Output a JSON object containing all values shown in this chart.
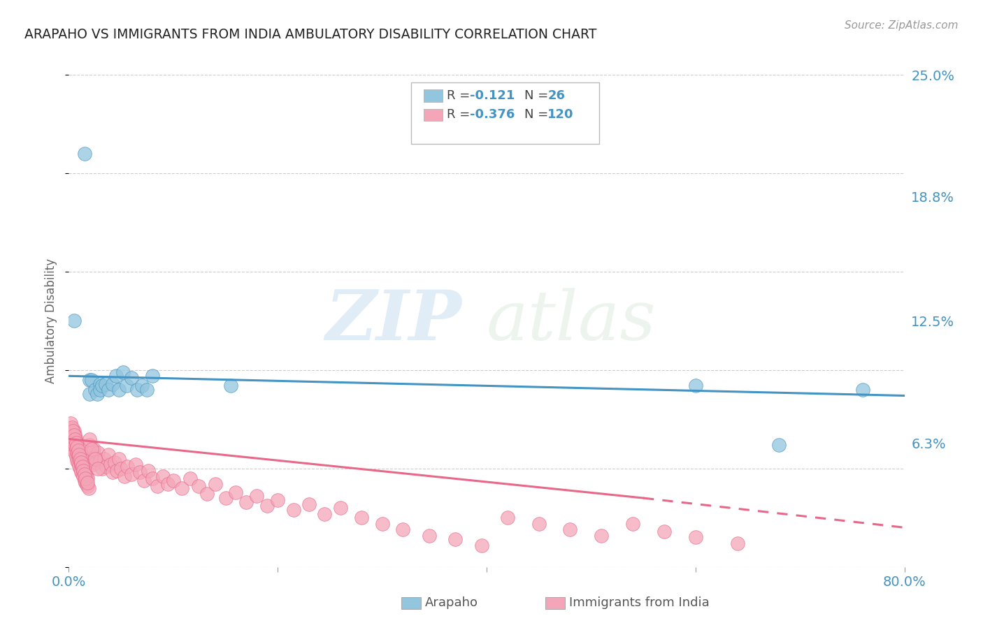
{
  "title": "ARAPAHO VS IMMIGRANTS FROM INDIA AMBULATORY DISABILITY CORRELATION CHART",
  "source": "Source: ZipAtlas.com",
  "ylabel": "Ambulatory Disability",
  "xlim": [
    0.0,
    0.8
  ],
  "ylim": [
    0.0,
    0.25
  ],
  "yticks": [
    0.063,
    0.125,
    0.188,
    0.25
  ],
  "ytick_labels": [
    "6.3%",
    "12.5%",
    "18.8%",
    "25.0%"
  ],
  "xticks": [
    0.0,
    0.2,
    0.4,
    0.6,
    0.8
  ],
  "xtick_labels": [
    "0.0%",
    "",
    "",
    "",
    "80.0%"
  ],
  "watermark_zip": "ZIP",
  "watermark_atlas": "atlas",
  "blue_color": "#92c5de",
  "pink_color": "#f4a6b8",
  "blue_line_color": "#4393c3",
  "pink_line_color": "#e8688a",
  "blue_marker_edge": "#4393c3",
  "pink_marker_edge": "#e8688a",
  "arapaho_x": [
    0.005,
    0.015,
    0.02,
    0.02,
    0.022,
    0.025,
    0.027,
    0.03,
    0.03,
    0.032,
    0.035,
    0.038,
    0.042,
    0.045,
    0.048,
    0.052,
    0.055,
    0.06,
    0.065,
    0.07,
    0.075,
    0.08,
    0.155,
    0.6,
    0.68,
    0.76
  ],
  "arapaho_y": [
    0.125,
    0.21,
    0.095,
    0.088,
    0.095,
    0.09,
    0.088,
    0.093,
    0.09,
    0.092,
    0.093,
    0.09,
    0.093,
    0.097,
    0.09,
    0.099,
    0.092,
    0.096,
    0.09,
    0.092,
    0.09,
    0.097,
    0.092,
    0.092,
    0.062,
    0.09
  ],
  "india_x": [
    0.002,
    0.003,
    0.003,
    0.004,
    0.004,
    0.005,
    0.005,
    0.005,
    0.006,
    0.006,
    0.006,
    0.007,
    0.007,
    0.007,
    0.008,
    0.008,
    0.008,
    0.009,
    0.009,
    0.01,
    0.01,
    0.01,
    0.011,
    0.011,
    0.012,
    0.012,
    0.012,
    0.013,
    0.013,
    0.014,
    0.014,
    0.015,
    0.015,
    0.016,
    0.016,
    0.017,
    0.017,
    0.018,
    0.018,
    0.019,
    0.02,
    0.021,
    0.022,
    0.023,
    0.024,
    0.025,
    0.026,
    0.028,
    0.03,
    0.032,
    0.034,
    0.036,
    0.038,
    0.04,
    0.042,
    0.044,
    0.046,
    0.048,
    0.05,
    0.053,
    0.056,
    0.06,
    0.064,
    0.068,
    0.072,
    0.076,
    0.08,
    0.085,
    0.09,
    0.095,
    0.1,
    0.108,
    0.116,
    0.124,
    0.132,
    0.14,
    0.15,
    0.16,
    0.17,
    0.18,
    0.19,
    0.2,
    0.215,
    0.23,
    0.245,
    0.26,
    0.28,
    0.3,
    0.32,
    0.345,
    0.37,
    0.395,
    0.42,
    0.45,
    0.48,
    0.51,
    0.54,
    0.57,
    0.6,
    0.64,
    0.002,
    0.003,
    0.004,
    0.005,
    0.006,
    0.007,
    0.008,
    0.009,
    0.01,
    0.011,
    0.012,
    0.013,
    0.014,
    0.015,
    0.016,
    0.018,
    0.02,
    0.022,
    0.025,
    0.028
  ],
  "india_y": [
    0.068,
    0.065,
    0.07,
    0.062,
    0.067,
    0.06,
    0.064,
    0.069,
    0.058,
    0.062,
    0.067,
    0.056,
    0.06,
    0.065,
    0.054,
    0.058,
    0.063,
    0.053,
    0.057,
    0.051,
    0.055,
    0.06,
    0.05,
    0.054,
    0.048,
    0.052,
    0.057,
    0.047,
    0.051,
    0.046,
    0.05,
    0.044,
    0.048,
    0.043,
    0.047,
    0.042,
    0.046,
    0.041,
    0.045,
    0.04,
    0.062,
    0.058,
    0.055,
    0.052,
    0.06,
    0.056,
    0.053,
    0.058,
    0.054,
    0.05,
    0.055,
    0.051,
    0.057,
    0.052,
    0.048,
    0.053,
    0.049,
    0.055,
    0.05,
    0.046,
    0.051,
    0.047,
    0.052,
    0.048,
    0.044,
    0.049,
    0.045,
    0.041,
    0.046,
    0.042,
    0.044,
    0.04,
    0.045,
    0.041,
    0.037,
    0.042,
    0.035,
    0.038,
    0.033,
    0.036,
    0.031,
    0.034,
    0.029,
    0.032,
    0.027,
    0.03,
    0.025,
    0.022,
    0.019,
    0.016,
    0.014,
    0.011,
    0.025,
    0.022,
    0.019,
    0.016,
    0.022,
    0.018,
    0.015,
    0.012,
    0.073,
    0.071,
    0.069,
    0.067,
    0.065,
    0.063,
    0.061,
    0.059,
    0.057,
    0.055,
    0.053,
    0.051,
    0.049,
    0.047,
    0.045,
    0.043,
    0.065,
    0.06,
    0.055,
    0.05
  ]
}
